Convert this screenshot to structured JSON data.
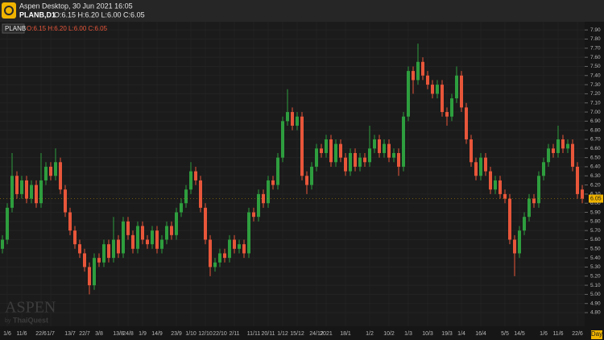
{
  "header": {
    "title": "Aspen Desktop, 30 Jun 2021 16:05",
    "symbol": "PLANB,D1",
    "ohlc": "O:6.15 H:6.20 L:6.00 C:6.05"
  },
  "watermark": {
    "brand": "ASPEN",
    "by": "by",
    "company": "ThaiQuest"
  },
  "chart_data": {
    "type": "candlestick",
    "title": "PLANB",
    "subtitle": "O:6.15 H:6.20 L:6.00 C:6.05",
    "period": "Day",
    "up_color": "#2e9e3e",
    "down_color": "#e8563a",
    "grid": true,
    "categories": [
      null,
      "1/6",
      null,
      null,
      "11/6",
      null,
      null,
      null,
      "22/6",
      null,
      "1/7",
      null,
      null,
      null,
      "13/7",
      null,
      null,
      "22/7",
      null,
      null,
      "3/8",
      null,
      null,
      null,
      "13/8",
      null,
      "24/8",
      null,
      null,
      "1/9",
      null,
      null,
      "14/9",
      null,
      null,
      null,
      "23/9",
      null,
      null,
      "1/10",
      null,
      null,
      "12/10",
      null,
      null,
      "22/10",
      null,
      null,
      "2/11",
      null,
      null,
      null,
      "11/11",
      null,
      null,
      "20/11",
      null,
      null,
      "1/12",
      null,
      null,
      "15/12",
      null,
      null,
      null,
      "24/12",
      null,
      "2021",
      null,
      null,
      null,
      "18/1",
      null,
      null,
      null,
      null,
      "1/2",
      null,
      null,
      null,
      "10/2",
      null,
      null,
      null,
      "1/3",
      null,
      null,
      null,
      "10/3",
      null,
      null,
      null,
      "19/3",
      null,
      null,
      "1/4",
      null,
      null,
      null,
      "16/4",
      null,
      null,
      null,
      null,
      "5/5",
      null,
      null,
      "14/5",
      null,
      null,
      null,
      null,
      "1/6",
      null,
      null,
      "11/6",
      null,
      null,
      null,
      "22/6",
      null
    ],
    "open": [
      5.5,
      5.6,
      5.95,
      6.3,
      6.1,
      6.25,
      6.05,
      6.2,
      6.0,
      6.25,
      6.4,
      6.3,
      6.45,
      6.15,
      5.9,
      5.7,
      5.55,
      5.45,
      5.3,
      5.1,
      5.4,
      5.35,
      5.55,
      5.4,
      5.6,
      5.45,
      5.8,
      5.65,
      5.5,
      5.75,
      5.6,
      5.55,
      5.7,
      5.5,
      5.6,
      5.75,
      5.65,
      5.9,
      6.0,
      6.15,
      6.35,
      6.25,
      5.95,
      5.6,
      5.3,
      5.35,
      5.45,
      5.4,
      5.6,
      5.5,
      5.55,
      5.45,
      5.9,
      5.85,
      6.1,
      6.0,
      6.25,
      6.2,
      6.5,
      6.9,
      7.0,
      6.85,
      6.95,
      6.3,
      6.2,
      6.4,
      6.6,
      6.55,
      6.7,
      6.45,
      6.65,
      6.5,
      6.35,
      6.55,
      6.4,
      6.5,
      6.45,
      6.6,
      6.7,
      6.55,
      6.65,
      6.5,
      6.55,
      6.4,
      6.95,
      7.45,
      7.35,
      7.55,
      7.4,
      7.3,
      7.2,
      7.3,
      7.0,
      6.95,
      7.15,
      7.4,
      7.05,
      6.7,
      6.45,
      6.3,
      6.5,
      6.35,
      6.15,
      6.25,
      6.1,
      6.05,
      5.6,
      5.45,
      5.7,
      5.85,
      6.05,
      6.0,
      6.3,
      6.45,
      6.6,
      6.55,
      6.7,
      6.6,
      6.65,
      6.4,
      6.15
    ],
    "high": [
      5.65,
      6.0,
      6.55,
      6.35,
      6.3,
      6.3,
      6.25,
      6.25,
      6.55,
      6.45,
      6.45,
      6.6,
      6.5,
      6.2,
      5.95,
      5.75,
      5.6,
      5.5,
      5.35,
      5.45,
      5.45,
      5.6,
      5.6,
      5.85,
      5.65,
      5.85,
      5.85,
      5.7,
      5.8,
      5.8,
      5.65,
      5.75,
      5.75,
      5.65,
      5.8,
      5.8,
      5.95,
      6.05,
      6.2,
      6.45,
      6.4,
      6.3,
      6.0,
      5.65,
      5.4,
      5.5,
      5.5,
      5.65,
      5.65,
      5.6,
      5.6,
      5.95,
      5.95,
      6.15,
      6.15,
      6.3,
      6.3,
      6.55,
      6.95,
      7.25,
      7.05,
      7.0,
      7.0,
      6.35,
      6.45,
      6.65,
      6.65,
      6.75,
      6.75,
      6.7,
      6.7,
      6.55,
      6.6,
      6.6,
      6.55,
      6.55,
      6.85,
      6.75,
      6.75,
      6.7,
      6.7,
      6.6,
      6.6,
      7.0,
      7.5,
      7.5,
      7.75,
      7.6,
      7.45,
      7.35,
      7.35,
      7.35,
      7.05,
      7.2,
      7.5,
      7.45,
      7.1,
      6.75,
      6.5,
      6.55,
      6.55,
      6.4,
      6.3,
      6.3,
      6.15,
      6.1,
      5.65,
      5.75,
      5.9,
      6.1,
      6.1,
      6.35,
      6.5,
      6.65,
      6.65,
      6.85,
      6.75,
      6.7,
      6.7,
      6.45,
      6.2
    ],
    "low": [
      5.45,
      5.55,
      5.9,
      6.05,
      6.05,
      6.0,
      6.0,
      5.95,
      5.95,
      6.2,
      6.25,
      6.25,
      6.1,
      5.85,
      5.65,
      5.5,
      5.4,
      5.25,
      5.0,
      5.05,
      5.3,
      5.3,
      5.35,
      5.35,
      5.4,
      5.4,
      5.6,
      5.45,
      5.45,
      5.55,
      5.5,
      5.5,
      5.45,
      5.45,
      5.55,
      5.6,
      5.6,
      5.85,
      5.95,
      6.1,
      6.2,
      5.9,
      5.55,
      5.2,
      5.25,
      5.3,
      5.35,
      5.35,
      5.45,
      5.45,
      5.4,
      5.4,
      5.8,
      5.8,
      5.95,
      5.95,
      6.15,
      6.15,
      6.45,
      6.85,
      6.8,
      6.8,
      6.25,
      6.1,
      6.15,
      6.35,
      6.5,
      6.5,
      6.4,
      6.4,
      6.45,
      6.3,
      6.3,
      6.35,
      6.35,
      6.4,
      6.4,
      6.55,
      6.5,
      6.5,
      6.45,
      6.45,
      6.3,
      6.35,
      6.9,
      7.2,
      7.3,
      7.35,
      7.25,
      7.15,
      7.15,
      6.95,
      6.85,
      6.9,
      7.1,
      7.0,
      6.65,
      6.4,
      6.25,
      6.25,
      6.3,
      6.1,
      6.1,
      6.05,
      6.0,
      5.55,
      5.2,
      5.4,
      5.65,
      5.8,
      5.95,
      5.95,
      6.25,
      6.4,
      6.5,
      6.5,
      6.55,
      6.55,
      6.35,
      6.05,
      6.0
    ],
    "close": [
      5.6,
      5.95,
      6.3,
      6.1,
      6.25,
      6.05,
      6.2,
      6.0,
      6.25,
      6.4,
      6.3,
      6.45,
      6.15,
      5.9,
      5.7,
      5.55,
      5.45,
      5.3,
      5.1,
      5.4,
      5.35,
      5.55,
      5.4,
      5.6,
      5.45,
      5.8,
      5.65,
      5.5,
      5.75,
      5.6,
      5.55,
      5.7,
      5.5,
      5.6,
      5.75,
      5.65,
      5.9,
      6.0,
      6.15,
      6.35,
      6.25,
      5.95,
      5.6,
      5.3,
      5.35,
      5.45,
      5.4,
      5.6,
      5.5,
      5.55,
      5.45,
      5.9,
      5.85,
      6.1,
      6.0,
      6.25,
      6.2,
      6.5,
      6.9,
      7.0,
      6.85,
      6.95,
      6.3,
      6.2,
      6.4,
      6.6,
      6.55,
      6.7,
      6.45,
      6.65,
      6.5,
      6.35,
      6.55,
      6.4,
      6.5,
      6.45,
      6.6,
      6.7,
      6.55,
      6.65,
      6.5,
      6.55,
      6.4,
      6.95,
      7.45,
      7.35,
      7.55,
      7.4,
      7.3,
      7.2,
      7.3,
      7.0,
      6.95,
      7.15,
      7.4,
      7.05,
      6.7,
      6.45,
      6.3,
      6.5,
      6.35,
      6.15,
      6.25,
      6.1,
      6.05,
      5.6,
      5.45,
      5.7,
      5.85,
      6.05,
      6.0,
      6.3,
      6.45,
      6.6,
      6.55,
      6.7,
      6.6,
      6.65,
      6.4,
      6.1,
      6.05
    ],
    "last_price": 6.05,
    "ylim": [
      4.65,
      7.99
    ],
    "yticks": [
      {
        "value": 4.8,
        "label": "4.80"
      },
      {
        "value": 4.9,
        "label": "4.90"
      },
      {
        "value": 5.0,
        "label": "5.00"
      },
      {
        "value": 5.1,
        "label": "5.10"
      },
      {
        "value": 5.2,
        "label": "5.20"
      },
      {
        "value": 5.3,
        "label": "5.30"
      },
      {
        "value": 5.4,
        "label": "5.40"
      },
      {
        "value": 5.5,
        "label": "5.50"
      },
      {
        "value": 5.6,
        "label": "5.60"
      },
      {
        "value": 5.7,
        "label": "5.70"
      },
      {
        "value": 5.8,
        "label": "5.80"
      },
      {
        "value": 5.9,
        "label": "5.90"
      },
      {
        "value": 6.0,
        "label": "6.00"
      },
      {
        "value": 6.1,
        "label": "6.10"
      },
      {
        "value": 6.2,
        "label": "6.20"
      },
      {
        "value": 6.3,
        "label": "6.30"
      },
      {
        "value": 6.4,
        "label": "6.40"
      },
      {
        "value": 6.5,
        "label": "6.50"
      },
      {
        "value": 6.6,
        "label": "6.60"
      },
      {
        "value": 6.7,
        "label": "6.70"
      },
      {
        "value": 6.8,
        "label": "6.80"
      },
      {
        "value": 6.9,
        "label": "6.90"
      },
      {
        "value": 7.0,
        "label": "7.00"
      },
      {
        "value": 7.1,
        "label": "7.10"
      },
      {
        "value": 7.2,
        "label": "7.20"
      },
      {
        "value": 7.3,
        "label": "7.30"
      },
      {
        "value": 7.4,
        "label": "7.40"
      },
      {
        "value": 7.5,
        "label": "7.50"
      },
      {
        "value": 7.6,
        "label": "7.60"
      },
      {
        "value": 7.7,
        "label": "7.70"
      },
      {
        "value": 7.8,
        "label": "7.80"
      },
      {
        "value": 7.9,
        "label": "7.90"
      }
    ]
  }
}
